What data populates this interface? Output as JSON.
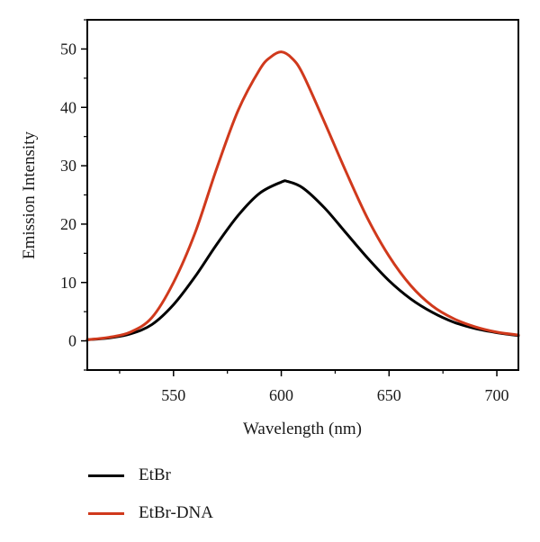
{
  "chart_data": {
    "type": "line",
    "title": "",
    "xlabel": "Wavelength (nm)",
    "ylabel": "Emission Intensity",
    "xlim": [
      510,
      710
    ],
    "ylim": [
      -5,
      55
    ],
    "x_ticks": [
      550,
      600,
      650,
      700
    ],
    "y_ticks": [
      0,
      10,
      20,
      30,
      40,
      50
    ],
    "x_tick_labels": [
      "550",
      "600",
      "650",
      "700"
    ],
    "y_tick_labels": [
      "0",
      "10",
      "20",
      "30",
      "40",
      "50"
    ],
    "grid": false,
    "legend_position": "bottom-left",
    "series": [
      {
        "name": "EtBr",
        "color": "#000000",
        "x": [
          510,
          520,
          530,
          540,
          550,
          560,
          570,
          580,
          590,
          600,
          603,
          610,
          620,
          630,
          640,
          650,
          660,
          670,
          680,
          690,
          700,
          710
        ],
        "y": [
          0.2,
          0.5,
          1.2,
          2.8,
          6.2,
          11.0,
          16.5,
          21.5,
          25.3,
          27.2,
          27.3,
          26.2,
          22.8,
          18.5,
          14.2,
          10.3,
          7.2,
          4.9,
          3.2,
          2.1,
          1.4,
          0.9
        ]
      },
      {
        "name": "EtBr-DNA",
        "color": "#d0391c",
        "x": [
          510,
          520,
          530,
          540,
          550,
          560,
          570,
          580,
          590,
          595,
          600,
          605,
          610,
          620,
          630,
          640,
          650,
          660,
          670,
          680,
          690,
          700,
          710
        ],
        "y": [
          0.2,
          0.6,
          1.5,
          4.0,
          10.0,
          18.5,
          29.5,
          39.5,
          46.5,
          48.6,
          49.5,
          48.4,
          45.7,
          37.5,
          29.0,
          21.0,
          14.5,
          9.5,
          6.0,
          3.8,
          2.4,
          1.5,
          1.0
        ]
      }
    ]
  }
}
